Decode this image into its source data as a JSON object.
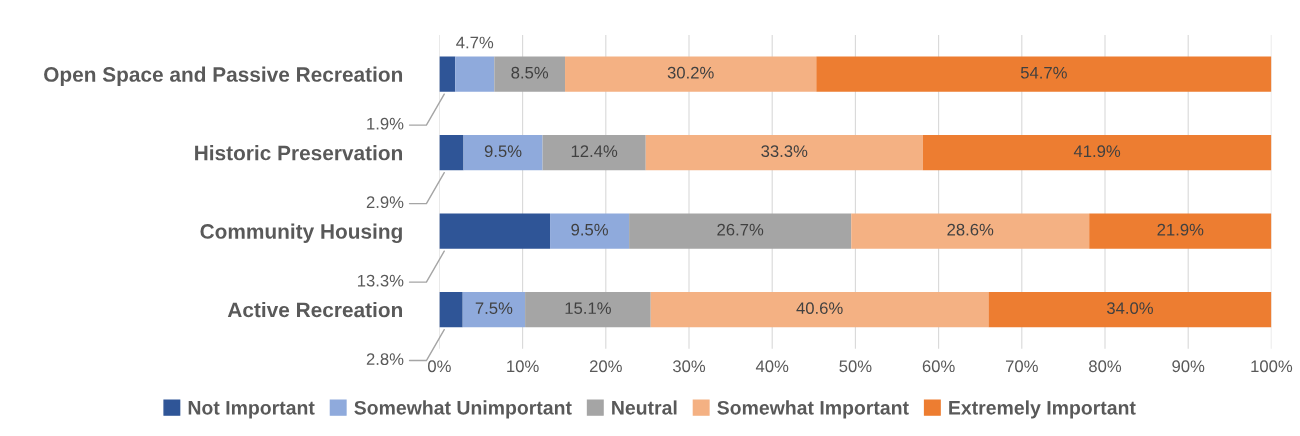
{
  "chart_data": {
    "type": "bar",
    "orientation": "horizontal",
    "stacked": true,
    "categories": [
      "Open Space and Passive Recreation",
      "Historic Preservation",
      "Community Housing",
      "Active Recreation"
    ],
    "series": [
      {
        "name": "Not Important",
        "color": "#2f5597",
        "values": [
          1.9,
          2.9,
          13.3,
          2.8
        ],
        "value_labels": [
          "1.9%",
          "2.9%",
          "13.3%",
          "2.8%"
        ]
      },
      {
        "name": "Somewhat Unimportant",
        "color": "#8faadc",
        "values": [
          4.7,
          9.5,
          9.5,
          7.5
        ],
        "value_labels": [
          "4.7%",
          "9.5%",
          "9.5%",
          "7.5%"
        ]
      },
      {
        "name": "Neutral",
        "color": "#a5a5a5",
        "values": [
          8.5,
          12.4,
          26.7,
          15.1
        ],
        "value_labels": [
          "8.5%",
          "12.4%",
          "26.7%",
          "15.1%"
        ]
      },
      {
        "name": "Somewhat Important",
        "color": "#f4b183",
        "values": [
          30.2,
          33.3,
          28.6,
          40.6
        ],
        "value_labels": [
          "30.2%",
          "33.3%",
          "28.6%",
          "40.6%"
        ]
      },
      {
        "name": "Extremely Important",
        "color": "#ed7d31",
        "values": [
          54.7,
          41.9,
          21.9,
          34.0
        ],
        "value_labels": [
          "54.7%",
          "41.9%",
          "21.9%",
          "34.0%"
        ]
      }
    ],
    "xlim": [
      0,
      100
    ],
    "xticks": [
      {
        "value": 0,
        "label": "0%"
      },
      {
        "value": 10,
        "label": "10%"
      },
      {
        "value": 20,
        "label": "20%"
      },
      {
        "value": 30,
        "label": "30%"
      },
      {
        "value": 40,
        "label": "40%"
      },
      {
        "value": 50,
        "label": "50%"
      },
      {
        "value": 60,
        "label": "60%"
      },
      {
        "value": 70,
        "label": "70%"
      },
      {
        "value": 80,
        "label": "80%"
      },
      {
        "value": 90,
        "label": "90%"
      },
      {
        "value": 100,
        "label": "100%"
      }
    ],
    "grid": "x",
    "legend": "bottom"
  }
}
